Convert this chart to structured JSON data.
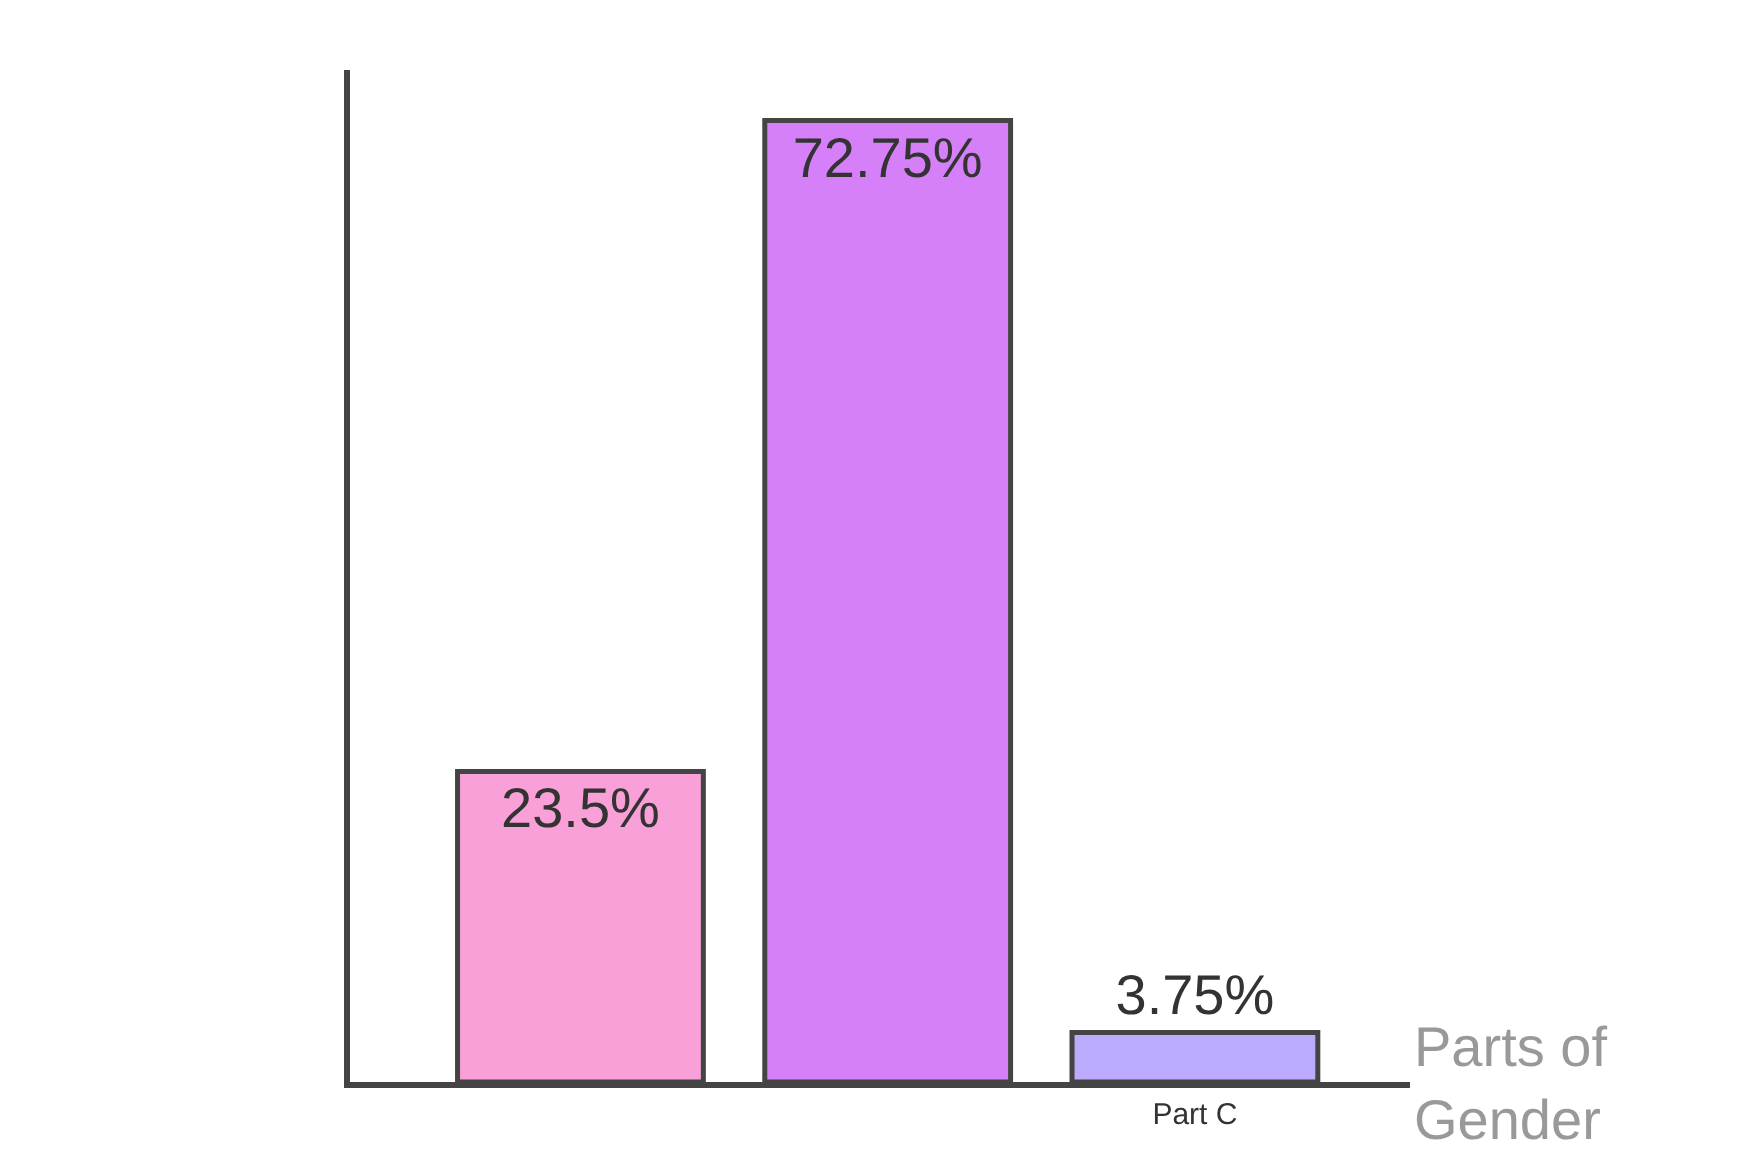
{
  "chart_data": {
    "type": "bar",
    "xlabel": "Parts of Gender",
    "categories": [
      null,
      null,
      "Part C"
    ],
    "values": [
      23.5,
      72.75,
      3.75
    ],
    "colors": [
      "#f9a0d8",
      "#d580f8",
      "#bcaafc"
    ],
    "data_labels": true,
    "value_labels": [
      "23.5%",
      "72.75%",
      "3.75%"
    ]
  }
}
